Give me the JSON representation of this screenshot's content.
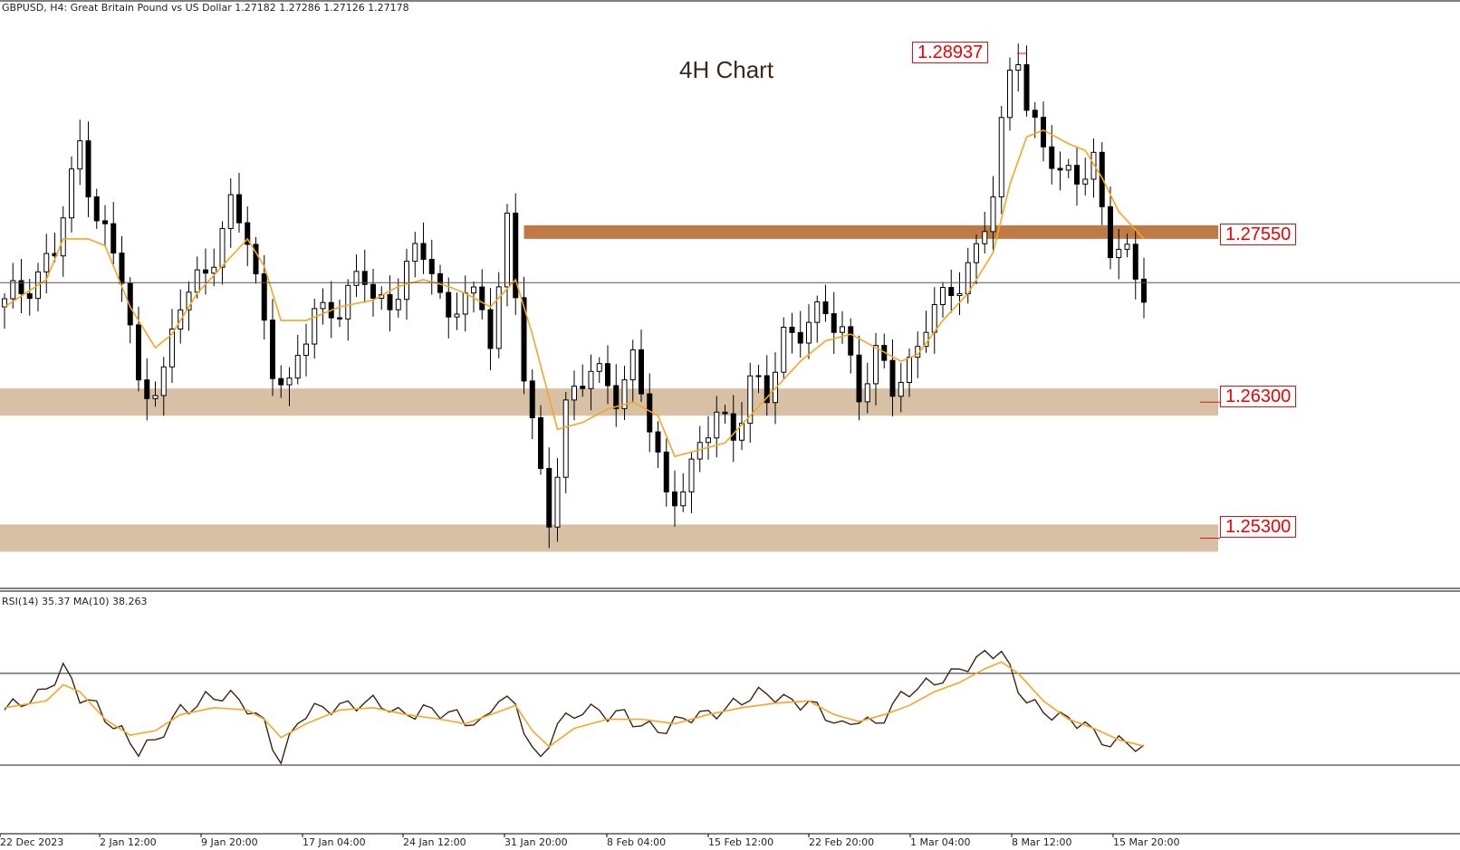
{
  "header": {
    "symbol_info": "GBPUSD, H4:  Great Britain Pound vs US Dollar  1.27182 1.27286 1.27126 1.27178",
    "rsi_info": "RSI(14) 35.37 MA(10) 38.263"
  },
  "colors": {
    "candles": "#000000",
    "ma_line": "#f5a623",
    "rsi_line": "#3b2410",
    "zone_light": "#d8c0a4",
    "zone_dark": "#c07a45",
    "label_red": "#e00000"
  },
  "chart_data": [
    {
      "type": "candlestick",
      "title": "4H Chart",
      "xlabel": "",
      "ylabel": "",
      "x_ticks": [
        "22 Dec 2023",
        "2 Jan 12:00",
        "9 Jan 20:00",
        "17 Jan 04:00",
        "24 Jan 12:00",
        "31 Jan 20:00",
        "8 Feb 04:00",
        "15 Feb 12:00",
        "22 Feb 20:00",
        "1 Mar 04:00",
        "8 Mar 12:00",
        "15 Mar 20:00"
      ],
      "ylim": [
        1.2505,
        1.2915
      ],
      "current_price": 1.27178,
      "close_path": [
        [
          0,
          1.27
        ],
        [
          6,
          1.274
        ],
        [
          8,
          1.279
        ],
        [
          9,
          1.282
        ],
        [
          11,
          1.277
        ],
        [
          14,
          1.272
        ],
        [
          16,
          1.264
        ],
        [
          19,
          1.265
        ],
        [
          21,
          1.27
        ],
        [
          24,
          1.273
        ],
        [
          27,
          1.277
        ],
        [
          29,
          1.275
        ],
        [
          30,
          1.272
        ],
        [
          32,
          1.266
        ],
        [
          34,
          1.2635
        ],
        [
          37,
          1.27
        ],
        [
          40,
          1.27
        ],
        [
          43,
          1.272
        ],
        [
          46,
          1.27
        ],
        [
          48,
          1.273
        ],
        [
          51,
          1.2735
        ],
        [
          53,
          1.269
        ],
        [
          55,
          1.2712
        ],
        [
          58,
          1.268
        ],
        [
          60,
          1.2765
        ],
        [
          62,
          1.265
        ],
        [
          64,
          1.257
        ],
        [
          65,
          1.2545
        ],
        [
          67,
          1.263
        ],
        [
          70,
          1.265
        ],
        [
          73,
          1.264
        ],
        [
          75,
          1.266
        ],
        [
          77,
          1.261
        ],
        [
          79,
          1.256
        ],
        [
          82,
          1.258
        ],
        [
          85,
          1.262
        ],
        [
          87,
          1.261
        ],
        [
          89,
          1.2645
        ],
        [
          91,
          1.263
        ],
        [
          93,
          1.268
        ],
        [
          96,
          1.269
        ],
        [
          98,
          1.269
        ],
        [
          100,
          1.2685
        ],
        [
          102,
          1.264
        ],
        [
          104,
          1.266
        ],
        [
          106,
          1.264
        ],
        [
          108,
          1.266
        ],
        [
          110,
          1.269
        ],
        [
          112,
          1.27
        ],
        [
          114,
          1.272
        ],
        [
          116,
          1.2745
        ],
        [
          118,
          1.278
        ],
        [
          120,
          1.287
        ],
        [
          121,
          1.289
        ],
        [
          122,
          1.285
        ],
        [
          124,
          1.282
        ],
        [
          126,
          1.279
        ],
        [
          128,
          1.28
        ],
        [
          130,
          1.281
        ],
        [
          131,
          1.277
        ],
        [
          132,
          1.274
        ],
        [
          134,
          1.2735
        ],
        [
          135,
          1.2725
        ],
        [
          136,
          1.2718
        ]
      ],
      "ma_path": [
        [
          0,
          1.27
        ],
        [
          5,
          1.272
        ],
        [
          7,
          1.275
        ],
        [
          10,
          1.275
        ],
        [
          12,
          1.2745
        ],
        [
          15,
          1.27
        ],
        [
          18,
          1.267
        ],
        [
          20,
          1.268
        ],
        [
          23,
          1.271
        ],
        [
          26,
          1.273
        ],
        [
          29,
          1.275
        ],
        [
          31,
          1.273
        ],
        [
          33,
          1.269
        ],
        [
          36,
          1.269
        ],
        [
          40,
          1.27
        ],
        [
          44,
          1.2705
        ],
        [
          47,
          1.2715
        ],
        [
          50,
          1.272
        ],
        [
          53,
          1.2715
        ],
        [
          55,
          1.271
        ],
        [
          58,
          1.27
        ],
        [
          61,
          1.272
        ],
        [
          63,
          1.268
        ],
        [
          66,
          1.261
        ],
        [
          69,
          1.2615
        ],
        [
          72,
          1.2625
        ],
        [
          75,
          1.263
        ],
        [
          78,
          1.262
        ],
        [
          80,
          1.259
        ],
        [
          83,
          1.2595
        ],
        [
          86,
          1.26
        ],
        [
          89,
          1.262
        ],
        [
          92,
          1.264
        ],
        [
          95,
          1.266
        ],
        [
          98,
          1.2675
        ],
        [
          101,
          1.268
        ],
        [
          104,
          1.267
        ],
        [
          107,
          1.266
        ],
        [
          109,
          1.2665
        ],
        [
          112,
          1.269
        ],
        [
          115,
          1.271
        ],
        [
          118,
          1.274
        ],
        [
          120,
          1.279
        ],
        [
          122,
          1.2825
        ],
        [
          124,
          1.283
        ],
        [
          127,
          1.282
        ],
        [
          129,
          1.2815
        ],
        [
          131,
          1.2795
        ],
        [
          133,
          1.277
        ],
        [
          136,
          1.275
        ]
      ],
      "levels": [
        {
          "label": "1.28937",
          "price": 1.28937,
          "kind": "high_marker"
        },
        {
          "label": "1.27550",
          "price": 1.2755,
          "zone": [
            1.275,
            1.276
          ],
          "style": "dark"
        },
        {
          "label": "1.26300",
          "price": 1.263,
          "zone": [
            1.262,
            1.264
          ],
          "style": "light"
        },
        {
          "label": "1.25300",
          "price": 1.253,
          "zone": [
            1.252,
            1.254
          ],
          "style": "light"
        }
      ]
    },
    {
      "type": "line",
      "title": "RSI(14) 35.37 MA(10) 38.263",
      "ylim": [
        0,
        100
      ],
      "reference_lines": [
        70,
        30
      ],
      "series": [
        {
          "name": "RSI(14)",
          "values": [
            [
              0,
              52
            ],
            [
              4,
              62
            ],
            [
              7,
              72
            ],
            [
              9,
              58
            ],
            [
              11,
              55
            ],
            [
              14,
              46
            ],
            [
              16,
              36
            ],
            [
              18,
              38
            ],
            [
              21,
              55
            ],
            [
              24,
              60
            ],
            [
              27,
              58
            ],
            [
              29,
              55
            ],
            [
              31,
              50
            ],
            [
              33,
              32
            ],
            [
              35,
              48
            ],
            [
              38,
              55
            ],
            [
              41,
              58
            ],
            [
              44,
              56
            ],
            [
              47,
              52
            ],
            [
              50,
              56
            ],
            [
              53,
              51
            ],
            [
              55,
              48
            ],
            [
              57,
              49
            ],
            [
              59,
              62
            ],
            [
              61,
              55
            ],
            [
              63,
              35
            ],
            [
              64,
              30
            ],
            [
              66,
              50
            ],
            [
              69,
              55
            ],
            [
              72,
              50
            ],
            [
              74,
              52
            ],
            [
              77,
              48
            ],
            [
              79,
              45
            ],
            [
              82,
              50
            ],
            [
              85,
              55
            ],
            [
              87,
              57
            ],
            [
              89,
              58
            ],
            [
              91,
              60
            ],
            [
              93,
              60
            ],
            [
              96,
              58
            ],
            [
              98,
              50
            ],
            [
              100,
              45
            ],
            [
              102,
              52
            ],
            [
              104,
              49
            ],
            [
              107,
              58
            ],
            [
              110,
              65
            ],
            [
              112,
              70
            ],
            [
              114,
              72
            ],
            [
              116,
              74
            ],
            [
              118,
              78
            ],
            [
              119,
              80
            ],
            [
              121,
              65
            ],
            [
              124,
              52
            ],
            [
              127,
              48
            ],
            [
              129,
              50
            ],
            [
              130,
              45
            ],
            [
              132,
              40
            ],
            [
              134,
              38
            ],
            [
              136,
              35.37
            ]
          ]
        },
        {
          "name": "MA(10)",
          "values": [
            [
              0,
              55
            ],
            [
              5,
              58
            ],
            [
              7,
              65
            ],
            [
              9,
              62
            ],
            [
              12,
              50
            ],
            [
              15,
              43
            ],
            [
              18,
              45
            ],
            [
              21,
              52
            ],
            [
              25,
              55
            ],
            [
              29,
              54
            ],
            [
              31,
              50
            ],
            [
              33,
              42
            ],
            [
              36,
              48
            ],
            [
              40,
              54
            ],
            [
              44,
              55
            ],
            [
              48,
              52
            ],
            [
              52,
              50
            ],
            [
              55,
              48
            ],
            [
              58,
              52
            ],
            [
              61,
              56
            ],
            [
              63,
              45
            ],
            [
              65,
              38
            ],
            [
              68,
              46
            ],
            [
              72,
              50
            ],
            [
              76,
              50
            ],
            [
              80,
              48
            ],
            [
              84,
              52
            ],
            [
              88,
              55
            ],
            [
              92,
              57
            ],
            [
              96,
              58
            ],
            [
              99,
              52
            ],
            [
              102,
              49
            ],
            [
              105,
              52
            ],
            [
              108,
              56
            ],
            [
              111,
              62
            ],
            [
              114,
              66
            ],
            [
              117,
              72
            ],
            [
              119,
              75
            ],
            [
              121,
              70
            ],
            [
              124,
              58
            ],
            [
              127,
              50
            ],
            [
              130,
              46
            ],
            [
              133,
              41
            ],
            [
              136,
              38.263
            ]
          ]
        }
      ]
    }
  ]
}
